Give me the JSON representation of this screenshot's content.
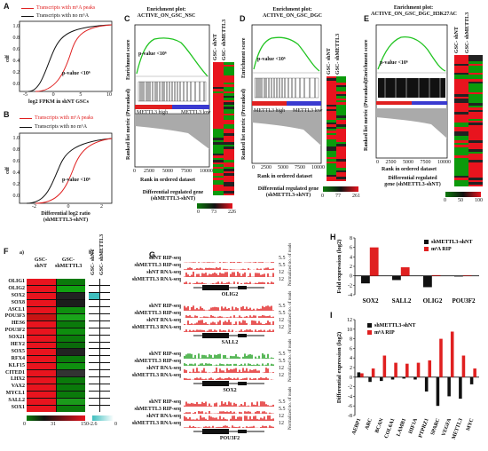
{
  "colors": {
    "red": "#e02020",
    "black": "#111111",
    "green": "#22c422",
    "heat_red": "#e8141e",
    "heat_green": "#0b7a0b",
    "teal": "#3fbfbf"
  },
  "panelA": {
    "letter": "A",
    "legend": [
      "Transcripts with m⁶A peaks",
      "Transcripts with no m⁶A"
    ],
    "ylabel": "cdf",
    "xlabel": "log2 FPKM in shNT GSCs",
    "pvalue": "p-value <10⁶",
    "xticks": [
      "-5",
      "0",
      "5",
      "10"
    ],
    "yticks": [
      "1.0",
      "0.8",
      "0.6",
      "0.4",
      "0.2",
      "0.0"
    ]
  },
  "panelB": {
    "letter": "B",
    "legend": [
      "Transcripts with m⁶A peaks",
      "Transcripts with no m⁶A"
    ],
    "ylabel": "cdf",
    "xlabel": "Differential log2 ratio",
    "xlabel2": "(shMETTL3-shNT)",
    "pvalue": "p-value <10⁶",
    "xticks": [
      "-2",
      "0",
      "2"
    ],
    "yticks": [
      "1.0",
      "0.8",
      "0.6",
      "0.4",
      "0.2",
      "0.0"
    ]
  },
  "panelC": {
    "letter": "C",
    "title1": "Enrichment plot:",
    "title2": "ACTIVE_ON_GSC_NSC",
    "pvalue": "p-value <10⁶",
    "cols": [
      "GSC- shNT",
      "GSC- shMETTL3"
    ],
    "high": "METTL3 high",
    "low": "METTL3 low",
    "es_label": "Enrichment score",
    "rank_label": "Ranked list metric (Preranked)",
    "xlabel": "Rank in ordered dataset",
    "xticks": [
      "0",
      "2500",
      "5000",
      "7500",
      "10000"
    ],
    "foot1": "Differential regulated gene",
    "foot2": "(shMETTL3-shNT)",
    "scale": [
      "0",
      "73",
      "226"
    ]
  },
  "panelD": {
    "letter": "D",
    "title1": "Enrichment plot:",
    "title2": "ACTIVE_ON_GSC_DGC",
    "pvalue": "p-value <10⁶",
    "cols": [
      "GSC- shNT",
      "GSC- shMETTL3"
    ],
    "high": "METTL3 high",
    "low": "METTL3 low",
    "es_label": "Enrichment score",
    "rank_label": "Ranked list metric (Preranked)",
    "xlabel": "Rank in ordered dataset",
    "xticks": [
      "0",
      "2500",
      "5000",
      "7500",
      "10000"
    ],
    "foot1": "Differential regulated gene",
    "foot2": "(shMETTL3-shNT)",
    "scale": [
      "0",
      "77",
      "261"
    ]
  },
  "panelE": {
    "letter": "E",
    "title1": "Enrichment plot:",
    "title2": "ACTIVE_ON_GSC_DGC_H3K27AC",
    "pvalue": "p-value <10⁶",
    "cols": [
      "GSC- shNT",
      "GSC- shMETTL3"
    ],
    "es_label": "Enrichment score",
    "rank_label": "Ranked list metric (Preranked)",
    "xlabel": "Rank in ordered dataset",
    "xticks": [
      "0",
      "2500",
      "5000",
      "7500",
      "10000"
    ],
    "foot1": "Differential regulated",
    "foot2": "gene (shMETTL3-shNT)",
    "scale": [
      "0",
      "50",
      "100"
    ]
  },
  "panelF": {
    "letter": "F",
    "sub_a": "a)",
    "sub_b": "b)",
    "cols_a": [
      "GSC- shNT",
      "GSC- shMETTL3"
    ],
    "cols_b": [
      "GSC- shNT",
      "GSC- shMETTL3"
    ],
    "genes": [
      "OLIG1",
      "OLIG2",
      "SOX2",
      "SOX8",
      "ASCL1",
      "POU3F3",
      "HES6",
      "POU3F2",
      "SOX21",
      "HEY2",
      "SOX5",
      "RFX4",
      "KLF15",
      "CITED1",
      "LHX2",
      "VAX2",
      "MYCL1",
      "SALL2",
      "SOX1"
    ],
    "scale_a": [
      "0",
      "31",
      "150"
    ],
    "scale_b": [
      "-2.6",
      "0"
    ]
  },
  "panelG": {
    "letter": "G",
    "groups": [
      {
        "gene": "OLIG2",
        "tracks": [
          "shNT RIP-seq",
          "shMETTL3 RIP-seq",
          "shNT RNA-seq",
          "shMETTL3 RNA-seq"
        ],
        "scale": [
          "5.5",
          "5.5",
          "12",
          "12"
        ]
      },
      {
        "gene": "SALL2",
        "tracks": [
          "shNT RIP-seq",
          "shMETTL3 RIP-seq",
          "shNT RNA-seq",
          "shMETTL3 RNA-seq"
        ],
        "scale": [
          "5.5",
          "5.5",
          "12",
          "12"
        ]
      },
      {
        "gene": "SOX2",
        "tracks": [
          "shNT RIP-seq",
          "shMETTL3 RIP-seq",
          "shNT RNA-seq",
          "shMETTL3 RNA-seq"
        ],
        "scale": [
          "5.5",
          "5.5",
          "12",
          "12"
        ]
      },
      {
        "gene": "POU3F2",
        "tracks": [
          "shNT RIP-seq",
          "shMETTL3 RIP-seq",
          "shNT RNA-seq",
          "shMETTL3 RNA-seq"
        ],
        "scale": [
          "5.5",
          "5.5",
          "12",
          "12"
        ]
      }
    ],
    "norm_label": "Normalized no. of reads"
  },
  "chart_data": [
    {
      "panel": "H",
      "type": "bar",
      "categories": [
        "SOX2",
        "SALL2",
        "OLIG2",
        "POU3F2"
      ],
      "series": [
        {
          "name": "shMETTL3-shNT",
          "color": "#111111",
          "values": [
            -1.6,
            -0.9,
            -2.4,
            -0.15
          ]
        },
        {
          "name": "m⁶A RIP",
          "color": "#e02020",
          "values": [
            6.0,
            1.8,
            0.15,
            0.1
          ]
        }
      ],
      "ylabel": "Fold expression (log2)",
      "yticks": [
        "8",
        "6",
        "4",
        "2",
        "0",
        "-2",
        "-4"
      ],
      "ylim": [
        -4,
        8
      ]
    },
    {
      "panel": "I",
      "type": "bar",
      "categories": [
        "AEBP1",
        "ARC",
        "BCAN",
        "COL6A1",
        "LAMB1",
        "HIF1A",
        "PTPRZ1",
        "SPARC",
        "VEGFA",
        "METTL3",
        "MYC"
      ],
      "series": [
        {
          "name": "shMETTL3-shNT",
          "color": "#111111",
          "values": [
            1.0,
            -1.0,
            -0.8,
            -0.5,
            -0.3,
            -0.5,
            -3.0,
            -6.0,
            -4.0,
            -4.5,
            -1.5
          ]
        },
        {
          "name": "m⁶A RIP",
          "color": "#e02020",
          "values": [
            0.8,
            1.8,
            4.5,
            3.0,
            2.8,
            3.0,
            3.5,
            8.0,
            9.5,
            4.5,
            1.8
          ]
        }
      ],
      "ylabel": "Differential expression (log2)",
      "yticks": [
        "12",
        "10",
        "8",
        "6",
        "4",
        "2",
        "0",
        "-2",
        "-4",
        "-6",
        "-8"
      ],
      "ylim": [
        -8,
        12
      ]
    }
  ]
}
